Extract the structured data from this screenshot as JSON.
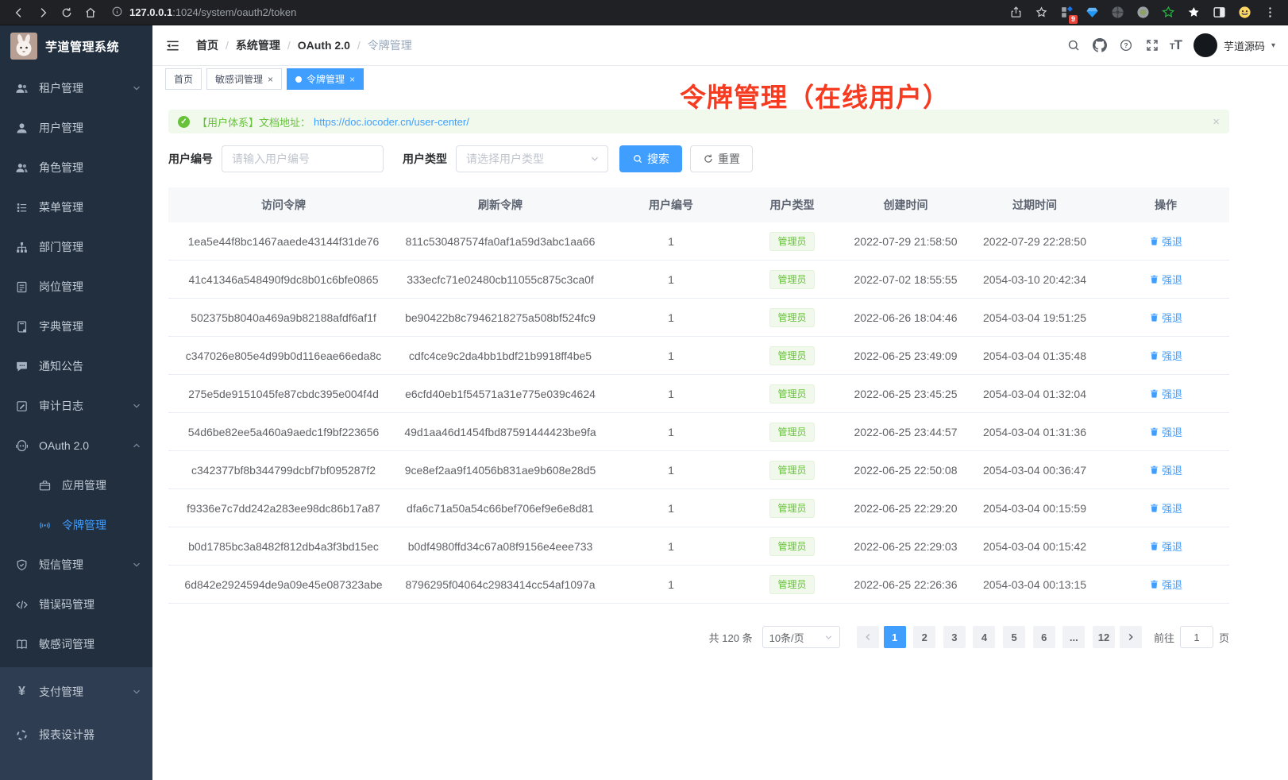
{
  "browser": {
    "url_host": "127.0.0.1",
    "url_path": ":1024/system/oauth2/token",
    "extensions_badge": "9"
  },
  "sidebar": {
    "title": "芋道管理系统",
    "items": [
      {
        "label": "租户管理",
        "icon": "tenant-users-icon",
        "chevron": "down",
        "indent": false,
        "active": false
      },
      {
        "label": "用户管理",
        "icon": "user-icon",
        "chevron": "",
        "indent": false,
        "active": false
      },
      {
        "label": "角色管理",
        "icon": "role-users-icon",
        "chevron": "",
        "indent": false,
        "active": false
      },
      {
        "label": "菜单管理",
        "icon": "menu-list-icon",
        "chevron": "",
        "indent": false,
        "active": false
      },
      {
        "label": "部门管理",
        "icon": "dept-tree-icon",
        "chevron": "",
        "indent": false,
        "active": false
      },
      {
        "label": "岗位管理",
        "icon": "post-badge-icon",
        "chevron": "",
        "indent": false,
        "active": false
      },
      {
        "label": "字典管理",
        "icon": "dict-book-icon",
        "chevron": "",
        "indent": false,
        "active": false
      },
      {
        "label": "通知公告",
        "icon": "notice-message-icon",
        "chevron": "",
        "indent": false,
        "active": false
      },
      {
        "label": "审计日志",
        "icon": "audit-log-icon",
        "chevron": "down",
        "indent": false,
        "active": false
      },
      {
        "label": "OAuth 2.0",
        "icon": "oauth-robot-icon",
        "chevron": "up",
        "indent": false,
        "active": false
      },
      {
        "label": "应用管理",
        "icon": "app-briefcase-icon",
        "chevron": "",
        "indent": true,
        "active": false
      },
      {
        "label": "令牌管理",
        "icon": "token-signal-icon",
        "chevron": "",
        "indent": true,
        "active": true
      },
      {
        "label": "短信管理",
        "icon": "sms-shield-icon",
        "chevron": "down",
        "indent": false,
        "active": false
      },
      {
        "label": "错误码管理",
        "icon": "errorcode-icon",
        "chevron": "",
        "indent": false,
        "active": false
      },
      {
        "label": "敏感词管理",
        "icon": "sensitive-book-icon",
        "chevron": "",
        "indent": false,
        "active": false
      }
    ],
    "bottom_items": [
      {
        "label": "支付管理",
        "icon": "pay-yen-icon",
        "chevron": "down",
        "indent": false,
        "active": false
      },
      {
        "label": "报表设计器",
        "icon": "report-ring-icon",
        "chevron": "",
        "indent": false,
        "active": false
      }
    ]
  },
  "header": {
    "breadcrumb": [
      "首页",
      "系统管理",
      "OAuth 2.0",
      "令牌管理"
    ],
    "username": "芋道源码"
  },
  "tabs": [
    {
      "label": "首页",
      "closable": false,
      "active": false
    },
    {
      "label": "敏感词管理",
      "closable": true,
      "active": false
    },
    {
      "label": "令牌管理",
      "closable": true,
      "active": true
    }
  ],
  "annotation": "令牌管理（在线用户）",
  "alert": {
    "text": "【用户体系】文档地址：",
    "link": "https://doc.iocoder.cn/user-center/"
  },
  "filters": {
    "user_id_label": "用户编号",
    "user_id_placeholder": "请输入用户编号",
    "user_type_label": "用户类型",
    "user_type_placeholder": "请选择用户类型",
    "search_label": "搜索",
    "reset_label": "重置"
  },
  "table": {
    "columns": [
      "访问令牌",
      "刷新令牌",
      "用户编号",
      "用户类型",
      "创建时间",
      "过期时间",
      "操作"
    ],
    "rows": [
      {
        "access_token": "1ea5e44f8bc1467aaede43144f31de76",
        "refresh_token": "811c530487574fa0af1a59d3abc1aa66",
        "user_id": "1",
        "user_type": "管理员",
        "created_at": "2022-07-29 21:58:50",
        "expires_at": "2022-07-29 22:28:50",
        "action": "强退"
      },
      {
        "access_token": "41c41346a548490f9dc8b01c6bfe0865",
        "refresh_token": "333ecfc71e02480cb11055c875c3ca0f",
        "user_id": "1",
        "user_type": "管理员",
        "created_at": "2022-07-02 18:55:55",
        "expires_at": "2054-03-10 20:42:34",
        "action": "强退"
      },
      {
        "access_token": "502375b8040a469a9b82188afdf6af1f",
        "refresh_token": "be90422b8c7946218275a508bf524fc9",
        "user_id": "1",
        "user_type": "管理员",
        "created_at": "2022-06-26 18:04:46",
        "expires_at": "2054-03-04 19:51:25",
        "action": "强退"
      },
      {
        "access_token": "c347026e805e4d99b0d116eae66eda8c",
        "refresh_token": "cdfc4ce9c2da4bb1bdf21b9918ff4be5",
        "user_id": "1",
        "user_type": "管理员",
        "created_at": "2022-06-25 23:49:09",
        "expires_at": "2054-03-04 01:35:48",
        "action": "强退"
      },
      {
        "access_token": "275e5de9151045fe87cbdc395e004f4d",
        "refresh_token": "e6cfd40eb1f54571a31e775e039c4624",
        "user_id": "1",
        "user_type": "管理员",
        "created_at": "2022-06-25 23:45:25",
        "expires_at": "2054-03-04 01:32:04",
        "action": "强退"
      },
      {
        "access_token": "54d6be82ee5a460a9aedc1f9bf223656",
        "refresh_token": "49d1aa46d1454fbd87591444423be9fa",
        "user_id": "1",
        "user_type": "管理员",
        "created_at": "2022-06-25 23:44:57",
        "expires_at": "2054-03-04 01:31:36",
        "action": "强退"
      },
      {
        "access_token": "c342377bf8b344799dcbf7bf095287f2",
        "refresh_token": "9ce8ef2aa9f14056b831ae9b608e28d5",
        "user_id": "1",
        "user_type": "管理员",
        "created_at": "2022-06-25 22:50:08",
        "expires_at": "2054-03-04 00:36:47",
        "action": "强退"
      },
      {
        "access_token": "f9336e7c7dd242a283ee98dc86b17a87",
        "refresh_token": "dfa6c71a50a54c66bef706ef9e6e8d81",
        "user_id": "1",
        "user_type": "管理员",
        "created_at": "2022-06-25 22:29:20",
        "expires_at": "2054-03-04 00:15:59",
        "action": "强退"
      },
      {
        "access_token": "b0d1785bc3a8482f812db4a3f3bd15ec",
        "refresh_token": "b0df4980ffd34c67a08f9156e4eee733",
        "user_id": "1",
        "user_type": "管理员",
        "created_at": "2022-06-25 22:29:03",
        "expires_at": "2054-03-04 00:15:42",
        "action": "强退"
      },
      {
        "access_token": "6d842e2924594de9a09e45e087323abe",
        "refresh_token": "8796295f04064c2983414cc54af1097a",
        "user_id": "1",
        "user_type": "管理员",
        "created_at": "2022-06-25 22:26:36",
        "expires_at": "2054-03-04 00:13:15",
        "action": "强退"
      }
    ]
  },
  "pagination": {
    "total": "共 120 条",
    "page_size": "10条/页",
    "pages": [
      {
        "label": "1",
        "active": true
      },
      {
        "label": "2",
        "active": false
      },
      {
        "label": "3",
        "active": false
      },
      {
        "label": "4",
        "active": false
      },
      {
        "label": "5",
        "active": false
      },
      {
        "label": "6",
        "active": false
      },
      {
        "label": "...",
        "active": false
      },
      {
        "label": "12",
        "active": false
      }
    ],
    "goto_label": "前往",
    "goto_value": "1",
    "goto_suffix": "页"
  },
  "colors": {
    "accent": "#409eff",
    "success": "#67c23a",
    "annotation_red": "#f73b21",
    "sidebar_bg": "#212f3f"
  }
}
